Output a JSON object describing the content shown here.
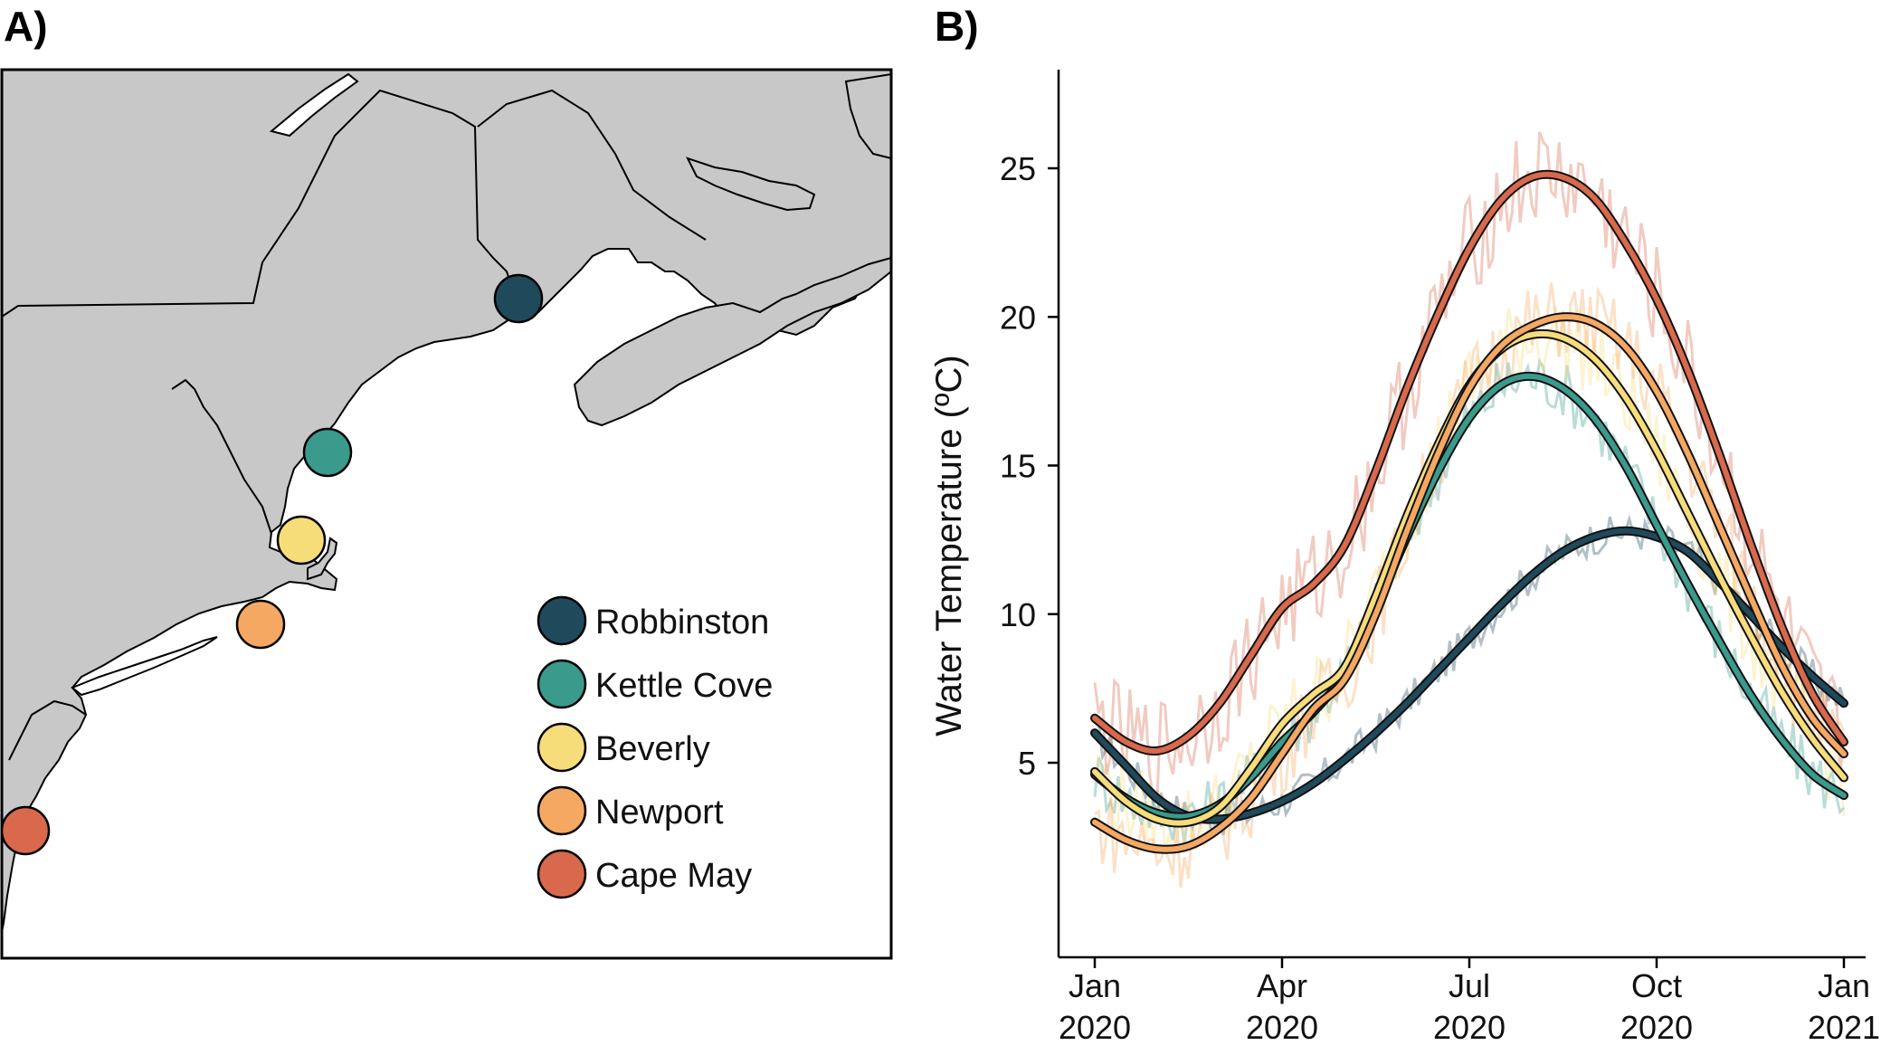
{
  "panel_a_label": "A)",
  "panel_b_label": "B)",
  "map": {
    "land_color": "#c8c8c8",
    "water_color": "#ffffff",
    "sites": [
      {
        "name": "Robbinston",
        "color": "#1f4a5c"
      },
      {
        "name": "Kettle Cove",
        "color": "#3a9a8c"
      },
      {
        "name": "Beverly",
        "color": "#f7dd7a"
      },
      {
        "name": "Newport",
        "color": "#f4a862"
      },
      {
        "name": "Cape May",
        "color": "#d8694c"
      }
    ]
  },
  "legend": {
    "items": [
      {
        "label": "Robbinston",
        "color": "#1f4a5c"
      },
      {
        "label": "Kettle Cove",
        "color": "#3a9a8c"
      },
      {
        "label": "Beverly",
        "color": "#f7dd7a"
      },
      {
        "label": "Newport",
        "color": "#f4a862"
      },
      {
        "label": "Cape May",
        "color": "#d8694c"
      }
    ]
  },
  "chart_data": {
    "type": "line",
    "title": "",
    "xlabel": "",
    "ylabel": "Water Temperature (ºC)",
    "x_ticks": [
      {
        "line1": "Jan",
        "line2": "2020",
        "month": 0
      },
      {
        "line1": "Apr",
        "line2": "2020",
        "month": 3
      },
      {
        "line1": "Jul",
        "line2": "2020",
        "month": 6
      },
      {
        "line1": "Oct",
        "line2": "2020",
        "month": 9
      },
      {
        "line1": "Jan",
        "line2": "2021",
        "month": 12
      }
    ],
    "y_ticks": [
      5,
      10,
      15,
      20,
      25
    ],
    "ylim": [
      -1.5,
      28.5
    ],
    "xlim_months": [
      -0.15,
      12.1
    ],
    "grid": false,
    "x_unit": "months since Jan 2020",
    "series": [
      {
        "name": "Robbinston",
        "color": "#1f4a5c",
        "x": [
          0,
          0.5,
          1,
          1.5,
          2,
          2.5,
          3,
          3.5,
          4,
          4.5,
          5,
          5.5,
          6,
          6.5,
          7,
          7.5,
          8,
          8.5,
          9,
          9.5,
          10,
          10.5,
          11,
          11.5,
          12
        ],
        "y": [
          6.0,
          4.9,
          3.8,
          3.2,
          3.1,
          3.3,
          3.7,
          4.3,
          5.1,
          6.0,
          7.0,
          8.1,
          9.2,
          10.3,
          11.3,
          12.1,
          12.6,
          12.8,
          12.6,
          12.1,
          11.1,
          10.0,
          8.9,
          7.9,
          7.0
        ]
      },
      {
        "name": "Kettle Cove",
        "color": "#3a9a8c",
        "x": [
          0,
          0.5,
          1,
          1.5,
          2,
          2.5,
          3,
          3.5,
          4,
          4.5,
          5,
          5.5,
          6,
          6.5,
          7,
          7.5,
          8,
          8.5,
          9,
          9.5,
          10,
          10.5,
          11,
          11.5,
          12
        ],
        "y": [
          4.6,
          3.8,
          3.3,
          3.2,
          3.6,
          4.5,
          5.7,
          6.7,
          8.0,
          10.2,
          12.6,
          14.8,
          16.6,
          17.7,
          18.0,
          17.6,
          16.6,
          15.0,
          13.0,
          11.0,
          9.1,
          7.3,
          5.8,
          4.6,
          3.9
        ]
      },
      {
        "name": "Beverly",
        "color": "#f7dd7a",
        "x": [
          0,
          0.5,
          1,
          1.5,
          2,
          2.5,
          3,
          3.5,
          4,
          4.5,
          5,
          5.5,
          6,
          6.5,
          7,
          7.5,
          8,
          8.5,
          9,
          9.5,
          10,
          10.5,
          11,
          11.5,
          12
        ],
        "y": [
          4.7,
          3.7,
          3.1,
          3.0,
          3.5,
          4.8,
          6.3,
          7.3,
          8.2,
          10.6,
          13.3,
          15.7,
          17.7,
          18.9,
          19.4,
          19.3,
          18.6,
          17.3,
          15.5,
          13.4,
          11.3,
          9.3,
          7.4,
          5.8,
          4.5
        ]
      },
      {
        "name": "Newport",
        "color": "#f4a862",
        "x": [
          0,
          0.5,
          1,
          1.5,
          2,
          2.5,
          3,
          3.5,
          4,
          4.5,
          5,
          5.5,
          6,
          6.5,
          7,
          7.5,
          8,
          8.5,
          9,
          9.5,
          10,
          10.5,
          11,
          11.5,
          12
        ],
        "y": [
          3.0,
          2.4,
          2.1,
          2.2,
          2.8,
          3.8,
          5.3,
          6.8,
          7.8,
          10.0,
          12.8,
          15.4,
          17.6,
          19.0,
          19.7,
          20.0,
          19.8,
          19.0,
          17.5,
          15.4,
          13.0,
          10.6,
          8.3,
          6.5,
          5.3
        ]
      },
      {
        "name": "Cape May",
        "color": "#d8694c",
        "x": [
          0,
          0.5,
          1,
          1.5,
          2,
          2.5,
          3,
          3.5,
          4,
          4.5,
          5,
          5.5,
          6,
          6.5,
          7,
          7.5,
          8,
          8.5,
          9,
          9.5,
          10,
          10.5,
          11,
          11.5,
          12
        ],
        "y": [
          6.5,
          5.7,
          5.4,
          5.9,
          7.0,
          8.6,
          10.2,
          11.0,
          12.3,
          14.8,
          17.6,
          20.1,
          22.3,
          23.9,
          24.7,
          24.7,
          24.0,
          22.5,
          20.6,
          18.2,
          15.4,
          12.4,
          9.6,
          7.3,
          5.7
        ]
      }
    ]
  }
}
